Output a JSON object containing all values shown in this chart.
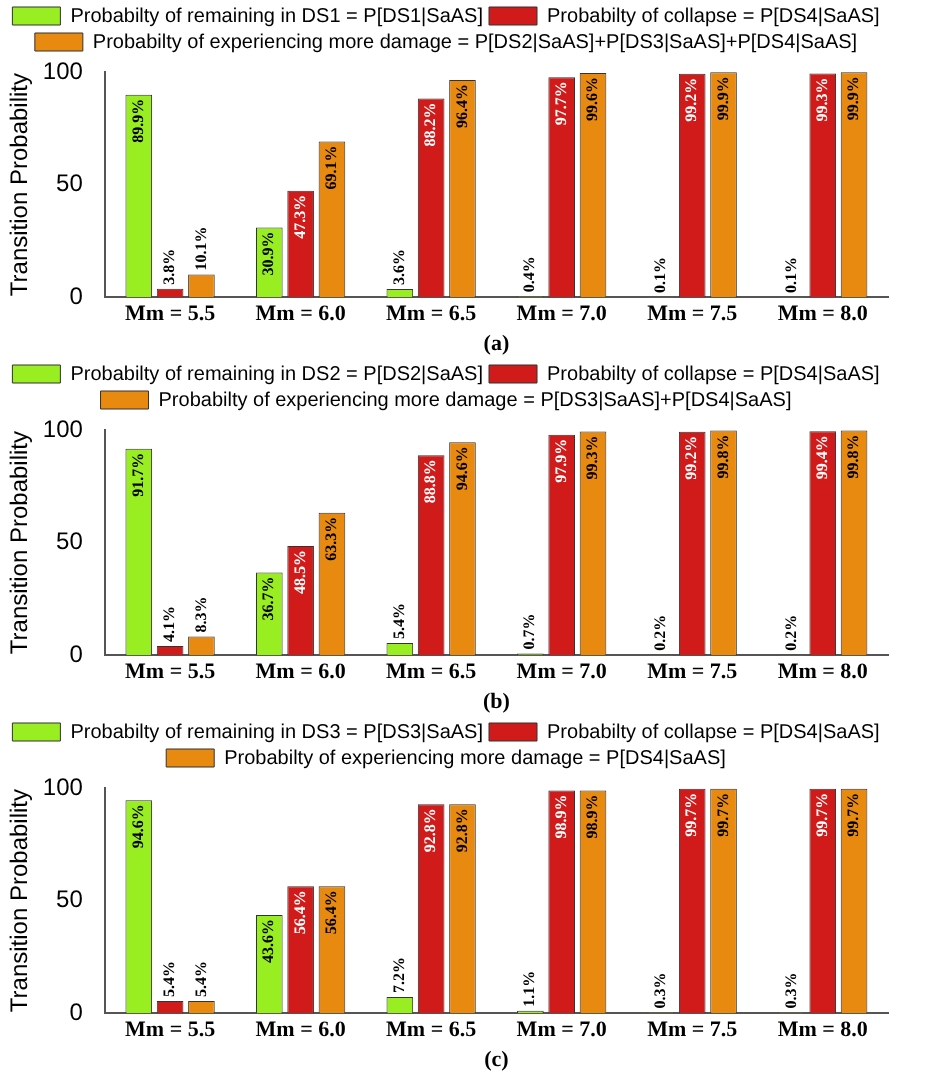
{
  "chart_data": [
    {
      "type": "bar",
      "xlabel": "(a)",
      "ylabel": "Transition Probability",
      "categories": [
        "Mm = 5.5",
        "Mm = 6.0",
        "Mm = 6.5",
        "Mm = 7.0",
        "Mm = 7.5",
        "Mm = 8.0"
      ],
      "ylim": [
        0,
        100
      ],
      "yticks": [
        0,
        50,
        100
      ],
      "grid": false,
      "legend": "top",
      "series": [
        {
          "name": "Probabilty of remaining in DS1 = P[DS1|SaAS]",
          "color": "#99ee22",
          "values": [
            89.9,
            30.9,
            3.6,
            0.4,
            0.1,
            0.1
          ],
          "value_labels": [
            "89.9%",
            "30.9%",
            "3.6%",
            "0.4%",
            "0.1%",
            "0.1%"
          ]
        },
        {
          "name": "Probabilty of collapse = P[DS4|SaAS]",
          "color": "#d11a1a",
          "values": [
            3.8,
            47.3,
            88.2,
            97.7,
            99.2,
            99.3
          ],
          "value_labels": [
            "3.8%",
            "47.3%",
            "88.2%",
            "97.7%",
            "99.2%",
            "99.3%"
          ]
        },
        {
          "name": "Probabilty of experiencing more damage = P[DS2|SaAS]+P[DS3|SaAS]+P[DS4|SaAS]",
          "color": "#e88a10",
          "values": [
            10.1,
            69.1,
            96.4,
            99.6,
            99.9,
            99.9
          ],
          "value_labels": [
            "10.1%",
            "69.1%",
            "96.4%",
            "99.6%",
            "99.9%",
            "99.9%"
          ]
        }
      ]
    },
    {
      "type": "bar",
      "xlabel": "(b)",
      "ylabel": "Transition Probability",
      "categories": [
        "Mm = 5.5",
        "Mm = 6.0",
        "Mm = 6.5",
        "Mm = 7.0",
        "Mm = 7.5",
        "Mm = 8.0"
      ],
      "ylim": [
        0,
        100
      ],
      "yticks": [
        0,
        50,
        100
      ],
      "grid": false,
      "legend": "top",
      "series": [
        {
          "name": "Probabilty of remaining in DS2 = P[DS2|SaAS]",
          "color": "#99ee22",
          "values": [
            91.7,
            36.7,
            5.4,
            0.7,
            0.2,
            0.2
          ],
          "value_labels": [
            "91.7%",
            "36.7%",
            "5.4%",
            "0.7%",
            "0.2%",
            "0.2%"
          ]
        },
        {
          "name": "Probabilty of collapse = P[DS4|SaAS]",
          "color": "#d11a1a",
          "values": [
            4.1,
            48.5,
            88.8,
            97.9,
            99.2,
            99.4
          ],
          "value_labels": [
            "4.1%",
            "48.5%",
            "88.8%",
            "97.9%",
            "99.2%",
            "99.4%"
          ]
        },
        {
          "name": "Probabilty of experiencing more damage = P[DS3|SaAS]+P[DS4|SaAS]",
          "color": "#e88a10",
          "values": [
            8.3,
            63.3,
            94.6,
            99.3,
            99.8,
            99.8
          ],
          "value_labels": [
            "8.3%",
            "63.3%",
            "94.6%",
            "99.3%",
            "99.8%",
            "99.8%"
          ]
        }
      ]
    },
    {
      "type": "bar",
      "xlabel": "(c)",
      "ylabel": "Transition Probability",
      "categories": [
        "Mm = 5.5",
        "Mm = 6.0",
        "Mm = 6.5",
        "Mm = 7.0",
        "Mm = 7.5",
        "Mm = 8.0"
      ],
      "ylim": [
        0,
        100
      ],
      "yticks": [
        0,
        50,
        100
      ],
      "grid": false,
      "legend": "top",
      "series": [
        {
          "name": "Probabilty of remaining in DS3 = P[DS3|SaAS]",
          "color": "#99ee22",
          "values": [
            94.6,
            43.6,
            7.2,
            1.1,
            0.3,
            0.3
          ],
          "value_labels": [
            "94.6%",
            "43.6%",
            "7.2%",
            "1.1%",
            "0.3%",
            "0.3%"
          ]
        },
        {
          "name": "Probabilty of collapse = P[DS4|SaAS]",
          "color": "#d11a1a",
          "values": [
            5.4,
            56.4,
            92.8,
            98.9,
            99.7,
            99.7
          ],
          "value_labels": [
            "5.4%",
            "56.4%",
            "92.8%",
            "98.9%",
            "99.7%",
            "99.7%"
          ]
        },
        {
          "name": "Probabilty of experiencing more damage = P[DS4|SaAS]",
          "color": "#e88a10",
          "values": [
            5.4,
            56.4,
            92.8,
            98.9,
            99.7,
            99.7
          ],
          "value_labels": [
            "5.4%",
            "56.4%",
            "92.8%",
            "98.9%",
            "99.7%",
            "99.7%"
          ]
        }
      ]
    }
  ]
}
